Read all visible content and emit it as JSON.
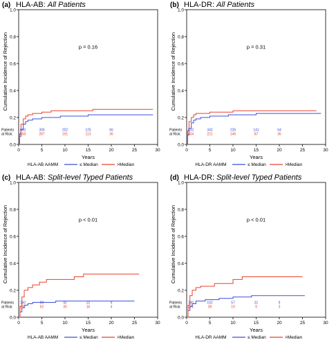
{
  "figure": {
    "red_color": "#e8412c",
    "blue_color": "#3a4fd8",
    "axis_color": "#000000"
  },
  "chart_data": [
    {
      "type": "line",
      "panel_label": "(a)",
      "title_prefix": "HLA-AB: ",
      "title_italic": "All Patients",
      "ylabel": "Cumulative Incidence of Rejection",
      "xlabel": "Years",
      "xlim": [
        0,
        30
      ],
      "ylim": [
        0,
        1.0
      ],
      "xticks": [
        0,
        5,
        10,
        15,
        20,
        25,
        30
      ],
      "yticks": [
        "0.0",
        "0.2",
        "0.4",
        "0.6",
        "0.8",
        "1.0"
      ],
      "p_value": "p = 0.16",
      "risk_label_line1": "Patients",
      "risk_label_line2": "at Risk:",
      "risk_blue": [
        "603",
        "306",
        "202",
        "125",
        "66"
      ],
      "risk_red": [
        "558",
        "287",
        "191",
        "113",
        "36"
      ],
      "legend_title": "HLA-AB AAMM",
      "legend": [
        "≤ Median",
        ">Median"
      ],
      "series": [
        {
          "name": "≤ Median",
          "color": "blue",
          "x": [
            0,
            0.2,
            0.5,
            1,
            1.5,
            2,
            3,
            4,
            5,
            7,
            9,
            10,
            12,
            15,
            20,
            25,
            29
          ],
          "y": [
            0,
            0.06,
            0.11,
            0.15,
            0.17,
            0.18,
            0.19,
            0.19,
            0.2,
            0.2,
            0.21,
            0.21,
            0.21,
            0.22,
            0.22,
            0.22,
            0.22
          ]
        },
        {
          "name": ">Median",
          "color": "red",
          "x": [
            0,
            0.2,
            0.5,
            1,
            1.5,
            2,
            3,
            5,
            7,
            10,
            13,
            16,
            20,
            25,
            29
          ],
          "y": [
            0,
            0.08,
            0.15,
            0.19,
            0.21,
            0.22,
            0.23,
            0.24,
            0.25,
            0.25,
            0.25,
            0.26,
            0.26,
            0.26,
            0.26
          ]
        }
      ]
    },
    {
      "type": "line",
      "panel_label": "(b)",
      "title_prefix": "HLA-DR: ",
      "title_italic": "All Patients",
      "ylabel": "Cumulative Incidence of Rejection",
      "xlabel": "Years",
      "xlim": [
        0,
        30
      ],
      "ylim": [
        0,
        1.0
      ],
      "xticks": [
        0,
        5,
        10,
        15,
        20,
        25,
        30
      ],
      "yticks": [
        "0.0",
        "0.2",
        "0.4",
        "0.6",
        "0.8",
        "1.0"
      ],
      "p_value": "p = 0.31",
      "risk_label_line1": "Patients",
      "risk_label_line2": "at Risk:",
      "risk_blue": [
        "632",
        "342",
        "226",
        "141",
        "64"
      ],
      "risk_red": [
        "404",
        "221",
        "146",
        "87",
        "36"
      ],
      "legend_title": "HLA-DR AAMM",
      "legend": [
        "≤ Median",
        ">Median"
      ],
      "series": [
        {
          "name": "≤ Median",
          "color": "blue",
          "x": [
            0,
            0.2,
            0.5,
            1,
            1.5,
            2,
            3,
            5,
            7,
            9,
            12,
            15,
            20,
            25,
            29
          ],
          "y": [
            0,
            0.07,
            0.12,
            0.16,
            0.18,
            0.19,
            0.2,
            0.21,
            0.21,
            0.22,
            0.22,
            0.23,
            0.23,
            0.23,
            0.23
          ]
        },
        {
          "name": ">Median",
          "color": "red",
          "x": [
            0,
            0.2,
            0.5,
            1,
            1.5,
            2,
            3,
            5,
            7,
            10,
            14,
            18,
            22,
            28
          ],
          "y": [
            0,
            0.1,
            0.17,
            0.2,
            0.22,
            0.23,
            0.23,
            0.24,
            0.24,
            0.25,
            0.25,
            0.25,
            0.25,
            0.25
          ]
        }
      ]
    },
    {
      "type": "line",
      "panel_label": "(c)",
      "title_prefix": "HLA-AB: ",
      "title_italic": "Split-level Typed Patients",
      "ylabel": "Cumulative Incidence of Rejection",
      "xlabel": "Years",
      "xlim": [
        0,
        30
      ],
      "ylim": [
        0,
        1.0
      ],
      "xticks": [
        0,
        5,
        10,
        15,
        20,
        25,
        30
      ],
      "yticks": [
        "0.0",
        "0.2",
        "0.4",
        "0.6",
        "0.8",
        "1.0"
      ],
      "p_value": "p < 0.01",
      "risk_label_line1": "Patients",
      "risk_label_line2": "at Risk:",
      "risk_blue": [
        "160",
        "80",
        "42",
        "22",
        "9"
      ],
      "risk_red": [
        "152",
        "62",
        "35",
        "16",
        "4"
      ],
      "legend_title": "HLA-AB AAMM",
      "legend": [
        "≤ Median",
        ">Median"
      ],
      "series": [
        {
          "name": "≤ Median",
          "color": "blue",
          "x": [
            0,
            0.3,
            0.7,
            1.2,
            2,
            3,
            5,
            8,
            11,
            15,
            20,
            25
          ],
          "y": [
            0,
            0.04,
            0.07,
            0.09,
            0.1,
            0.11,
            0.11,
            0.12,
            0.12,
            0.12,
            0.12,
            0.12
          ]
        },
        {
          "name": ">Median",
          "color": "red",
          "x": [
            0,
            0.3,
            0.7,
            1.2,
            2,
            3,
            4.5,
            6,
            10,
            12,
            14,
            26
          ],
          "y": [
            0,
            0.08,
            0.15,
            0.2,
            0.22,
            0.24,
            0.26,
            0.28,
            0.28,
            0.3,
            0.32,
            0.32
          ]
        }
      ]
    },
    {
      "type": "line",
      "panel_label": "(d)",
      "title_prefix": "HLA-DR: ",
      "title_italic": "Split-level Typed Patients",
      "ylabel": "Cumulative Incidence of Rejection",
      "xlabel": "Years",
      "xlim": [
        0,
        30
      ],
      "ylim": [
        0,
        1.0
      ],
      "xticks": [
        0,
        5,
        10,
        15,
        20,
        25,
        30
      ],
      "yticks": [
        "0.0",
        "0.2",
        "0.4",
        "0.6",
        "0.8",
        "1.0"
      ],
      "p_value": "p < 0.01",
      "risk_label_line1": "Patients",
      "risk_label_line2": "at Risk:",
      "risk_blue": [
        "190",
        "102",
        "57",
        "31",
        "9"
      ],
      "risk_red": [
        "121",
        "39",
        "19",
        "9",
        "3"
      ],
      "legend_title": "HLA-DR AAMM",
      "legend": [
        "≤ Median",
        ">Median"
      ],
      "series": [
        {
          "name": "≤ Median",
          "color": "blue",
          "x": [
            0,
            0.3,
            0.7,
            1.2,
            2,
            4,
            7,
            10,
            14,
            18,
            25.5
          ],
          "y": [
            0,
            0.05,
            0.08,
            0.1,
            0.12,
            0.13,
            0.14,
            0.15,
            0.16,
            0.16,
            0.16
          ]
        },
        {
          "name": ">Median",
          "color": "red",
          "x": [
            0,
            0.3,
            0.7,
            1.2,
            2,
            3,
            6,
            10,
            12,
            25
          ],
          "y": [
            0,
            0.09,
            0.16,
            0.2,
            0.22,
            0.23,
            0.25,
            0.28,
            0.3,
            0.3
          ]
        }
      ]
    }
  ]
}
